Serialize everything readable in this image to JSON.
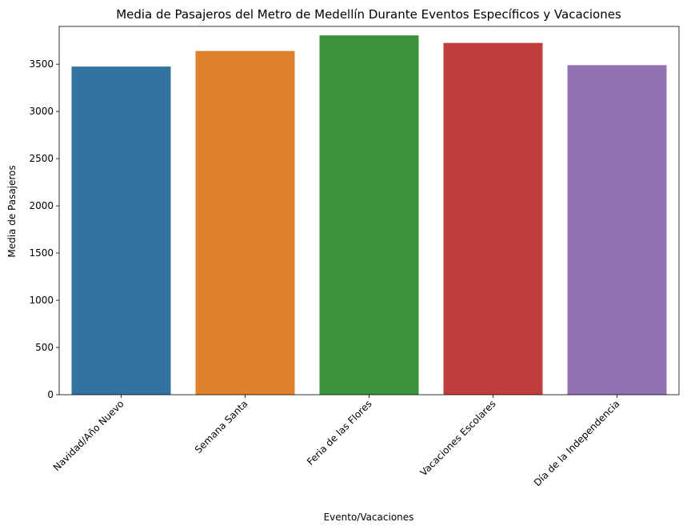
{
  "chart_data": {
    "type": "bar",
    "title": "Media de Pasajeros del Metro de Medellín Durante Eventos Específicos y Vacaciones",
    "xlabel": "Evento/Vacaciones",
    "ylabel": "Media de Pasajeros",
    "categories": [
      "Navidad/Año Nuevo",
      "Semana Santa",
      "Feria de las Flores",
      "Vacaciones Escolares",
      "Día de la Independencia"
    ],
    "values": [
      3475,
      3640,
      3805,
      3725,
      3490
    ],
    "colors": [
      "#3274a1",
      "#e1812c",
      "#3a923a",
      "#c03d3e",
      "#9372b2"
    ],
    "ylim": [
      0,
      3900
    ],
    "yticks": [
      0,
      500,
      1000,
      1500,
      2000,
      2500,
      3000,
      3500
    ],
    "grid": false
  }
}
